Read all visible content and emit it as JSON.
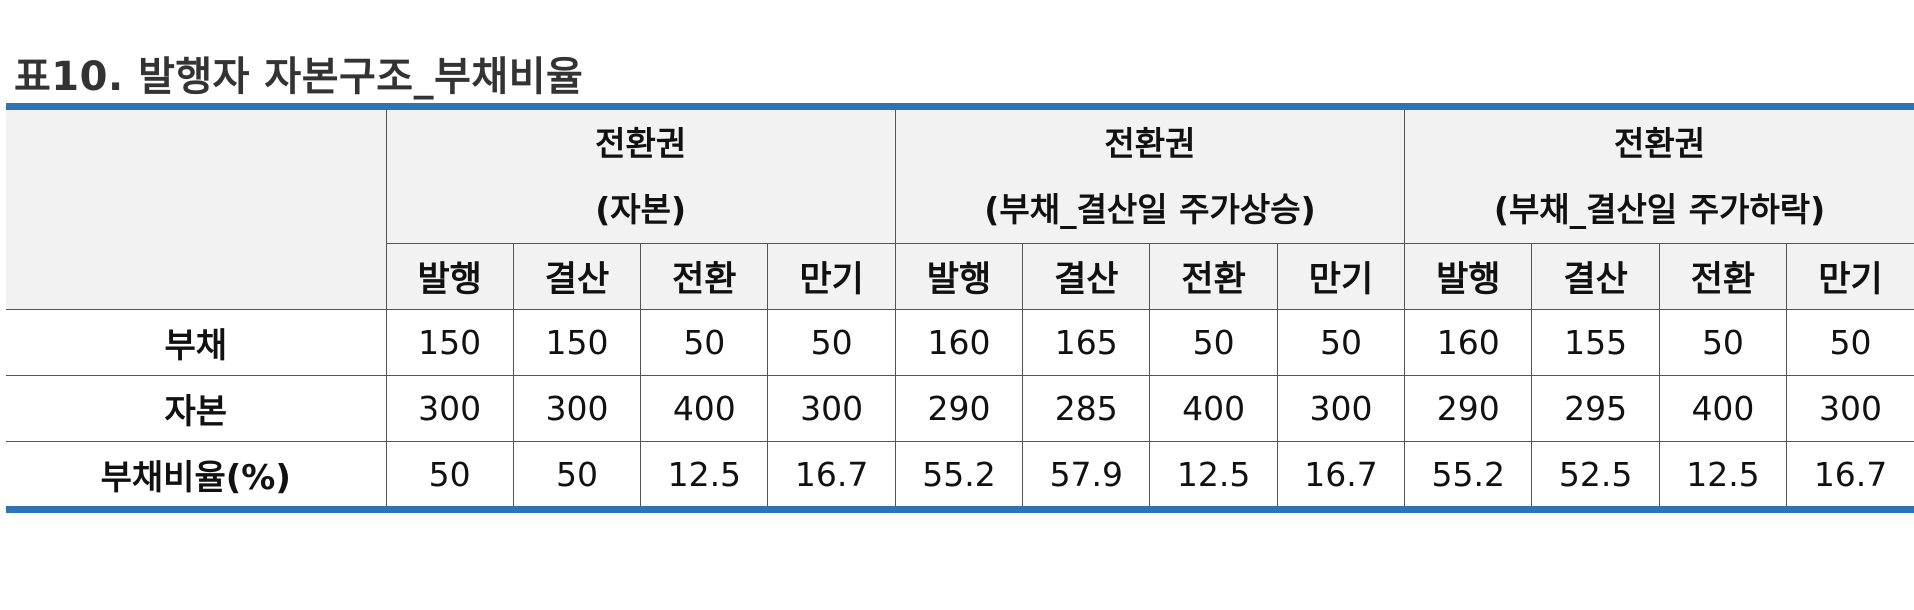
{
  "title": "표10. 발행자 자본구조_부채비율",
  "table": {
    "groups": [
      {
        "line1": "전환권",
        "line2": "(자본)"
      },
      {
        "line1": "전환권",
        "line2": "(부채_결산일 주가상승)"
      },
      {
        "line1": "전환권",
        "line2": "(부채_결산일 주가하락)"
      }
    ],
    "subheaders": [
      "발행",
      "결산",
      "전환",
      "만기"
    ],
    "rows": [
      {
        "label": "부채",
        "values": [
          "150",
          "150",
          "50",
          "50",
          "160",
          "165",
          "50",
          "50",
          "160",
          "155",
          "50",
          "50"
        ]
      },
      {
        "label": "자본",
        "values": [
          "300",
          "300",
          "400",
          "300",
          "290",
          "285",
          "400",
          "300",
          "290",
          "295",
          "400",
          "300"
        ]
      },
      {
        "label": "부채비율(%)",
        "values": [
          "50",
          "50",
          "12.5",
          "16.7",
          "55.2",
          "57.9",
          "12.5",
          "16.7",
          "55.2",
          "52.5",
          "12.5",
          "16.7"
        ]
      }
    ]
  },
  "colors": {
    "rule": "#2e74b5",
    "header_bg": "#f2f2f2"
  }
}
